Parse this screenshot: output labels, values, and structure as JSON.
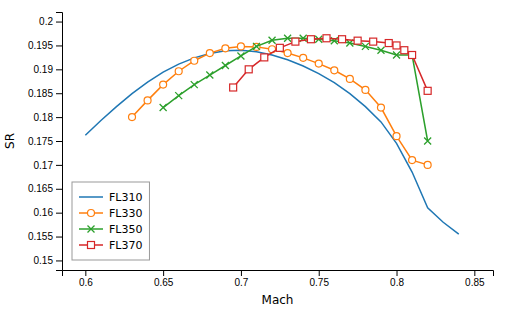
{
  "chart_data": {
    "type": "line",
    "xlabel": "Mach",
    "ylabel": "SR",
    "xlim": [
      0.585,
      0.862
    ],
    "ylim": [
      0.148,
      0.202
    ],
    "xticks": [
      0.6,
      0.65,
      0.7,
      0.75,
      0.8,
      0.85
    ],
    "yticks": [
      0.15,
      0.155,
      0.16,
      0.165,
      0.17,
      0.175,
      0.18,
      0.185,
      0.19,
      0.195,
      0.2
    ],
    "legend": "lower left",
    "series": [
      {
        "name": "FL310",
        "marker": "none",
        "x": [
          0.6,
          0.61,
          0.62,
          0.63,
          0.64,
          0.65,
          0.66,
          0.67,
          0.68,
          0.69,
          0.7,
          0.71,
          0.72,
          0.73,
          0.74,
          0.75,
          0.76,
          0.77,
          0.78,
          0.79,
          0.8,
          0.81,
          0.82,
          0.83,
          0.84
        ],
        "values": [
          0.1762,
          0.1793,
          0.1822,
          0.1849,
          0.1873,
          0.1894,
          0.1911,
          0.1924,
          0.1933,
          0.1939,
          0.194,
          0.1937,
          0.193,
          0.192,
          0.1907,
          0.1891,
          0.1872,
          0.1849,
          0.1822,
          0.179,
          0.1745,
          0.1685,
          0.161,
          0.158,
          0.1555
        ]
      },
      {
        "name": "FL330",
        "marker": "circle",
        "x": [
          0.63,
          0.64,
          0.65,
          0.66,
          0.67,
          0.68,
          0.69,
          0.7,
          0.71,
          0.72,
          0.73,
          0.74,
          0.75,
          0.76,
          0.77,
          0.78,
          0.79,
          0.8,
          0.81,
          0.82
        ],
        "values": [
          0.18,
          0.1835,
          0.1868,
          0.1896,
          0.1918,
          0.1934,
          0.1944,
          0.1948,
          0.1947,
          0.1942,
          0.1934,
          0.1924,
          0.1912,
          0.1898,
          0.188,
          0.1857,
          0.182,
          0.176,
          0.171,
          0.17
        ]
      },
      {
        "name": "FL350",
        "marker": "x",
        "x": [
          0.65,
          0.66,
          0.67,
          0.68,
          0.69,
          0.7,
          0.71,
          0.72,
          0.73,
          0.74,
          0.75,
          0.76,
          0.77,
          0.78,
          0.79,
          0.8,
          0.81,
          0.82
        ],
        "values": [
          0.182,
          0.1845,
          0.1868,
          0.1888,
          0.1908,
          0.1928,
          0.1948,
          0.1961,
          0.1965,
          0.1965,
          0.1963,
          0.196,
          0.1955,
          0.1948,
          0.194,
          0.193,
          0.193,
          0.175
        ]
      },
      {
        "name": "FL370",
        "marker": "square",
        "x": [
          0.695,
          0.705,
          0.715,
          0.725,
          0.735,
          0.745,
          0.755,
          0.765,
          0.775,
          0.785,
          0.795,
          0.8,
          0.805,
          0.81,
          0.82
        ],
        "values": [
          0.1862,
          0.19,
          0.1925,
          0.1945,
          0.1958,
          0.1963,
          0.1965,
          0.1963,
          0.196,
          0.1958,
          0.1955,
          0.195,
          0.194,
          0.193,
          0.1855
        ]
      }
    ]
  }
}
